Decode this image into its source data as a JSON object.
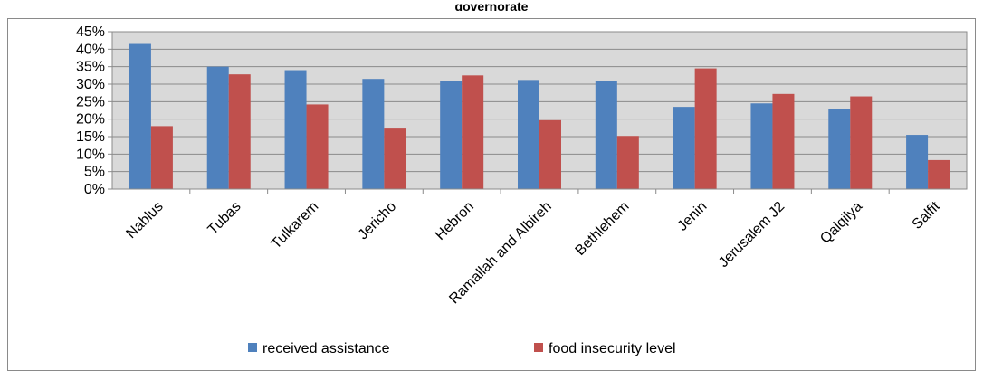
{
  "chart_data": {
    "type": "bar",
    "title": "governorate",
    "categories": [
      "Nablus",
      "Tubas",
      "Tulkarem",
      "Jericho",
      "Hebron",
      "Ramallah and Albireh",
      "Bethlehem",
      "Jenin",
      "Jerusalem J2",
      "Qalqilya",
      "Salfit"
    ],
    "series": [
      {
        "name": "received assistance",
        "color": "#4f81bd",
        "values": [
          41.5,
          35.0,
          34.0,
          31.5,
          31.0,
          31.2,
          31.0,
          23.5,
          24.5,
          22.8,
          15.5
        ]
      },
      {
        "name": "food insecurity level",
        "color": "#c0504d",
        "values": [
          18.0,
          32.8,
          24.2,
          17.3,
          32.5,
          19.7,
          15.2,
          34.5,
          27.2,
          26.5,
          8.3
        ]
      }
    ],
    "y_ticks": [
      "0%",
      "5%",
      "10%",
      "15%",
      "20%",
      "25%",
      "30%",
      "35%",
      "40%",
      "45%"
    ],
    "ylim": [
      0,
      45
    ],
    "grid": true,
    "legend_position": "bottom"
  }
}
